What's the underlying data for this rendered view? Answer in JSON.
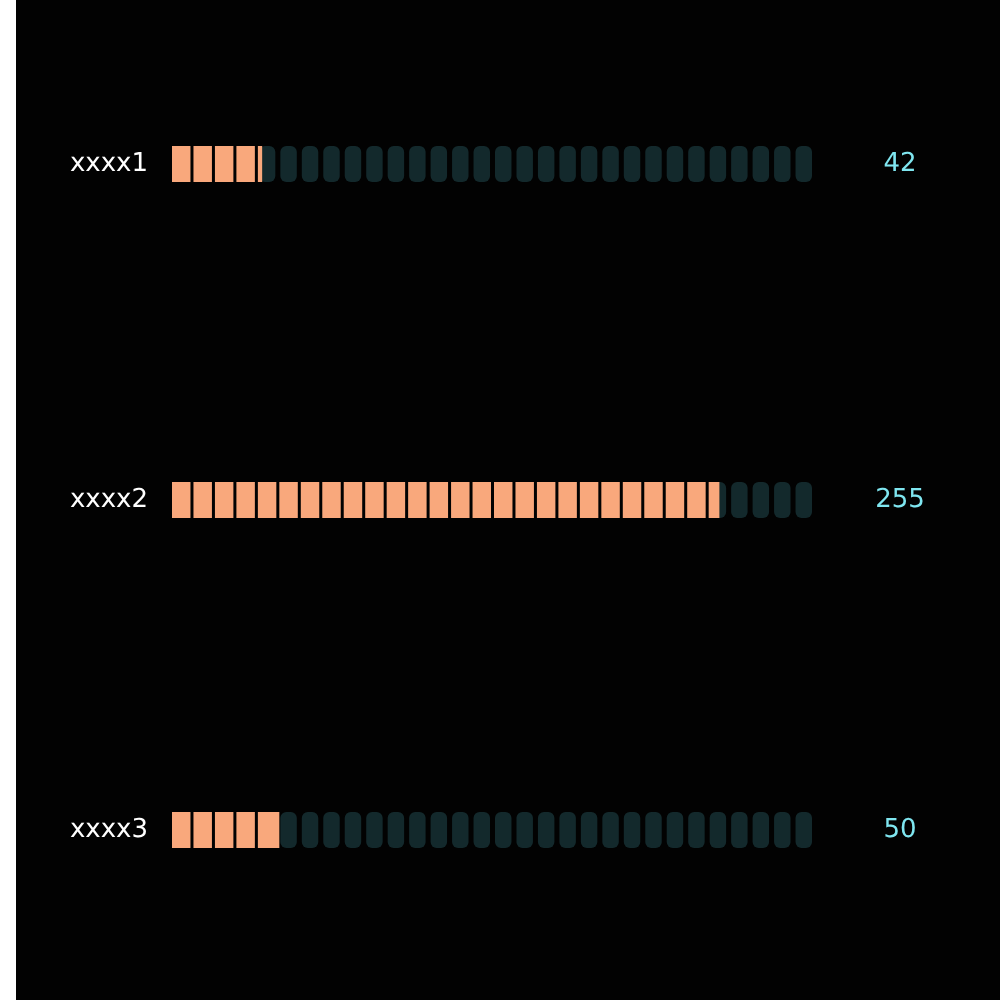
{
  "chart_data": {
    "type": "bar",
    "orientation": "horizontal",
    "categories": [
      "xxxx1",
      "xxxx2",
      "xxxx3"
    ],
    "values": [
      42,
      255,
      50
    ],
    "color": "#f9a87c",
    "xlim": [
      0,
      300
    ],
    "data_labels": true
  }
}
